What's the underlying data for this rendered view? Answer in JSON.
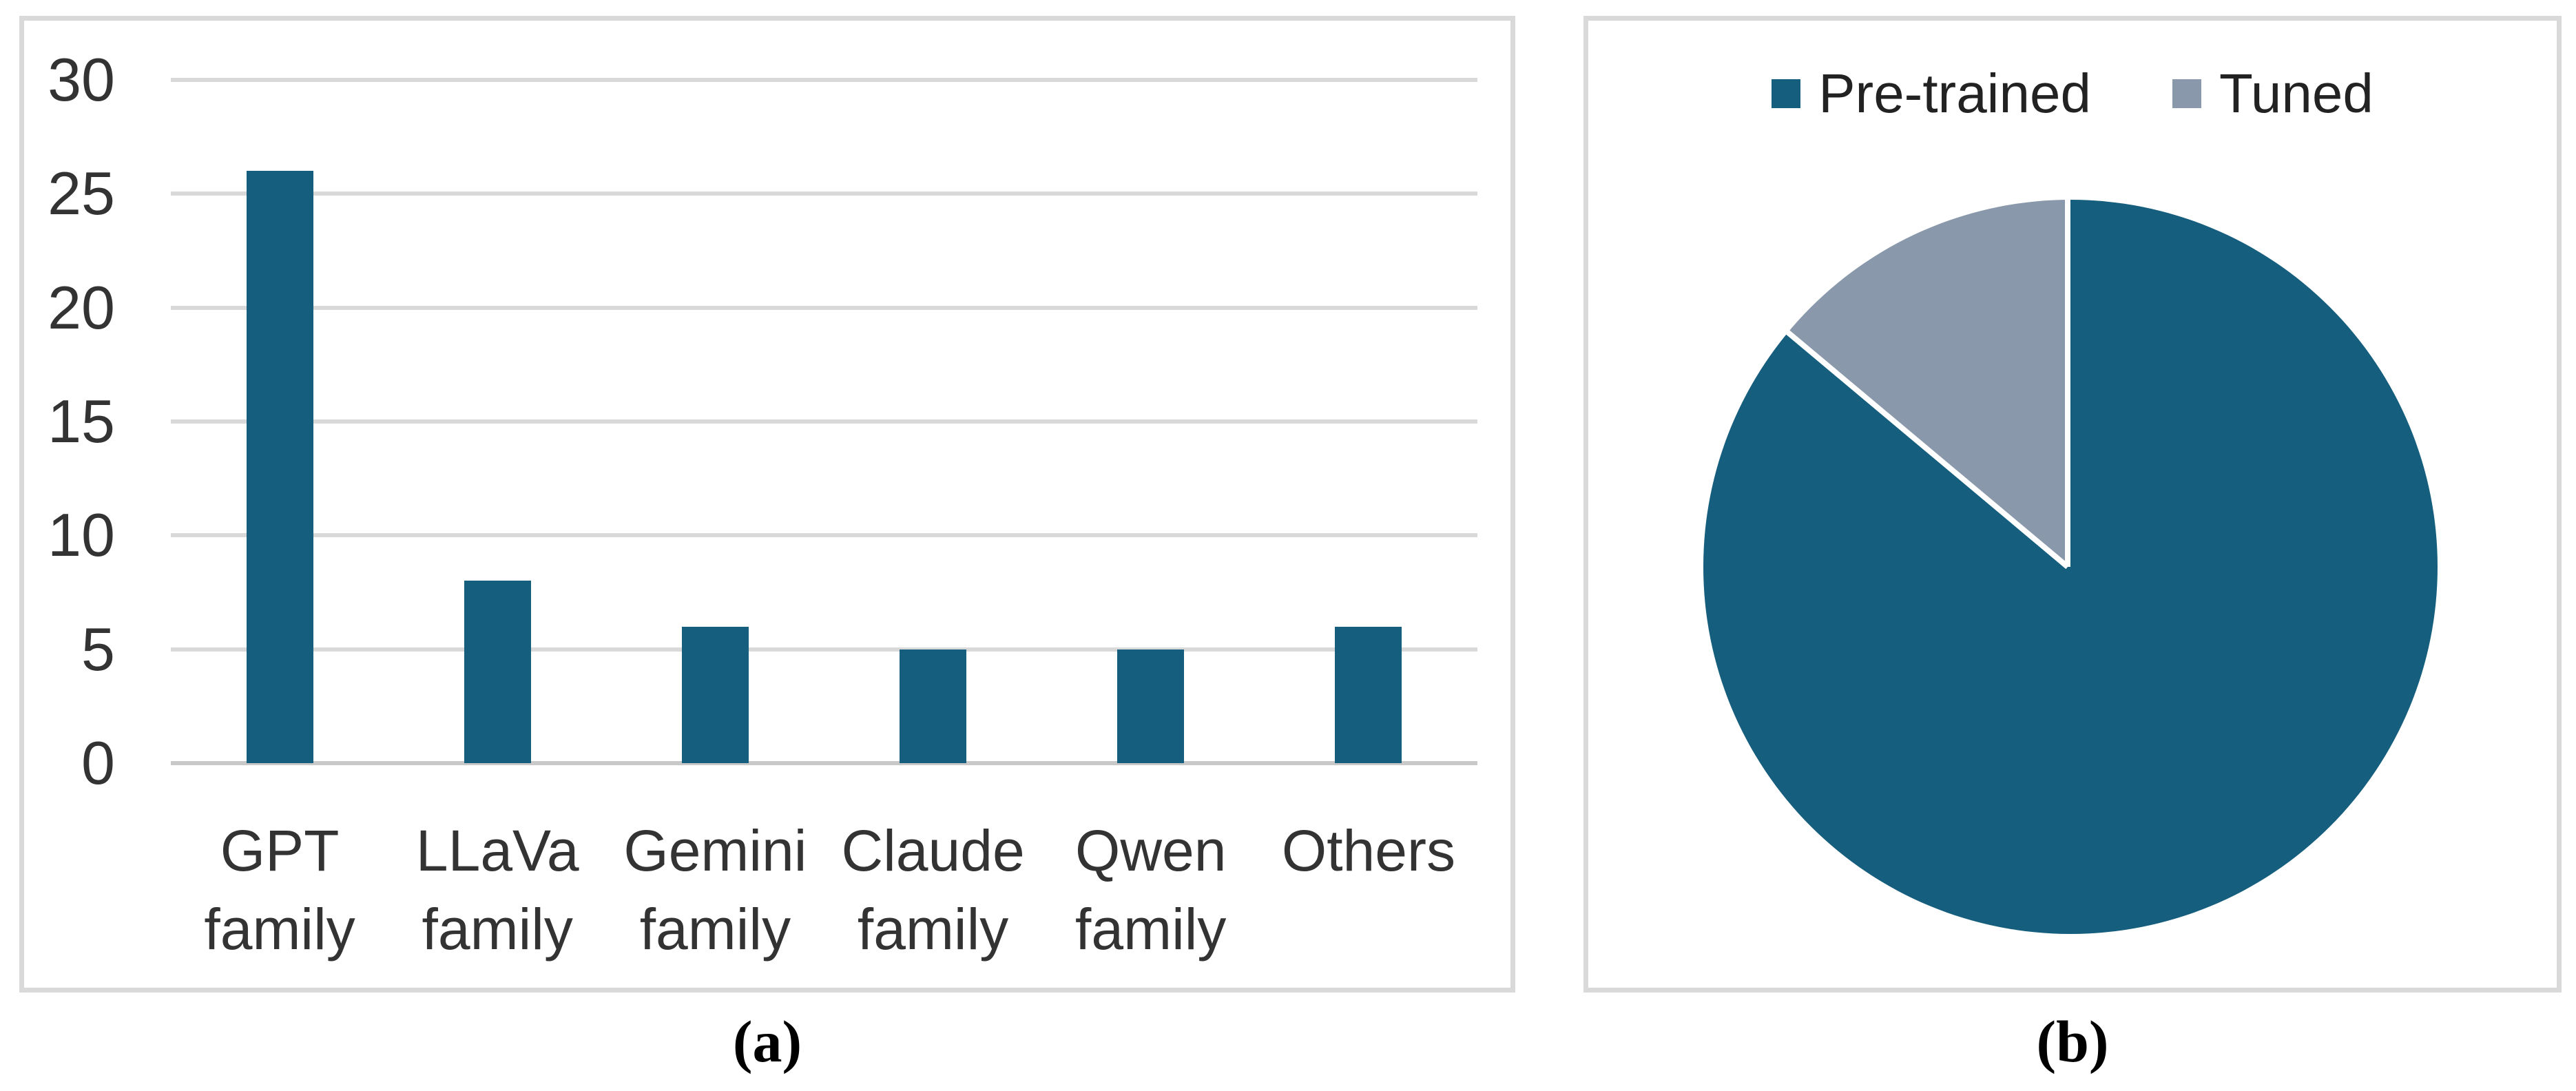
{
  "colors": {
    "teal": "#165E7E",
    "gray": "#8999AB",
    "gridline": "#D9D9D9",
    "panel_border": "#D9D9D9",
    "axis_text": "#333333"
  },
  "captions": {
    "a": "(a)",
    "b": "(b)"
  },
  "chart_data": [
    {
      "type": "bar",
      "title": "",
      "xlabel": "",
      "ylabel": "",
      "categories": [
        "GPT family",
        "LLaVa family",
        "Gemini family",
        "Claude family",
        "Qwen family",
        "Others"
      ],
      "values": [
        26,
        8,
        6,
        5,
        5,
        6
      ],
      "y_ticks": [
        0,
        5,
        10,
        15,
        20,
        25,
        30
      ],
      "ylim": [
        0,
        30
      ],
      "grid": true,
      "legend_position": "none",
      "bar_color": "#165E7E"
    },
    {
      "type": "pie",
      "title": "",
      "legend": [
        "Pre-trained",
        "Tuned"
      ],
      "legend_position": "top",
      "start_angle_deg": 0,
      "series": [
        {
          "name": "Pre-trained",
          "percent": 86.1,
          "color": "#165E7E"
        },
        {
          "name": "Tuned",
          "percent": 13.9,
          "color": "#8999AB"
        }
      ]
    }
  ]
}
